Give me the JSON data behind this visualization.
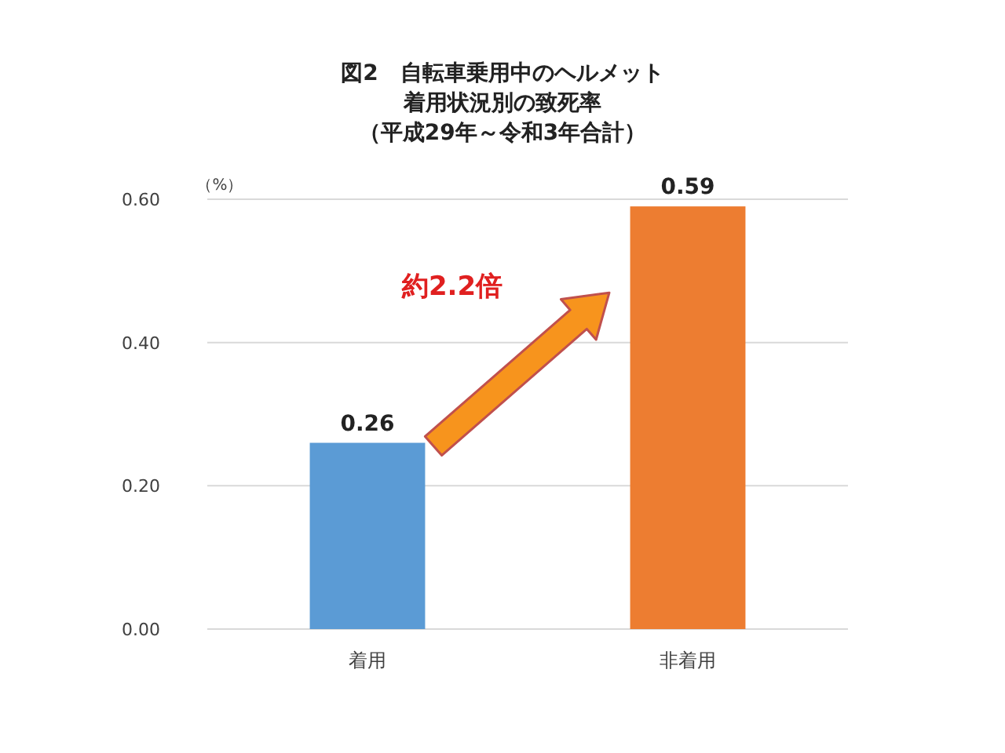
{
  "chart_data": {
    "type": "bar",
    "title": "図2　自転車乗用中のヘルメット着用状況別の致死率",
    "subtitle": "（平成29年～令和3年合計）",
    "ylabel": "（%）",
    "categories": [
      "着用",
      "非着用"
    ],
    "values": [
      0.26,
      0.59
    ],
    "colors": [
      "#5b9bd5",
      "#ed7d31"
    ],
    "ylim": [
      0,
      0.6
    ],
    "yticks": [
      {
        "value": 0,
        "label": "0.00"
      },
      {
        "value": 0.2,
        "label": "0.20"
      },
      {
        "value": 0.4,
        "label": "0.40"
      },
      {
        "value": 0.6,
        "label": "0.60"
      }
    ],
    "grid": "y",
    "data_labels": true,
    "annotations": [
      "約2.2倍"
    ]
  }
}
